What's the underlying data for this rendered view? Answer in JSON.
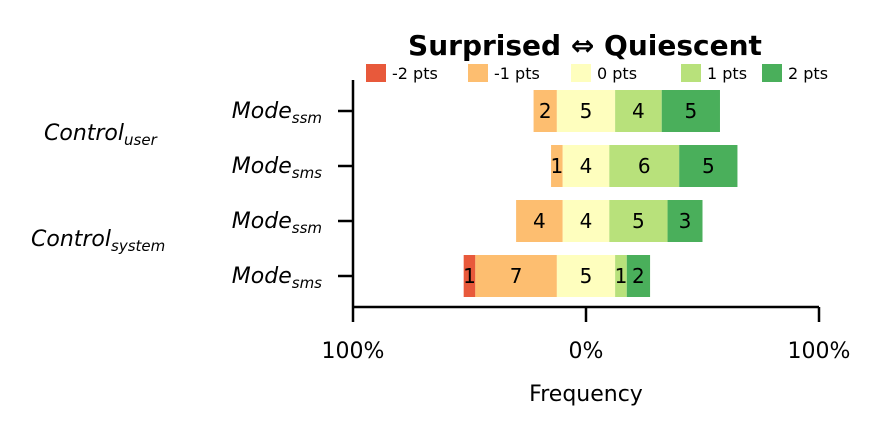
{
  "chart_data": {
    "type": "bar",
    "orientation": "horizontal",
    "stacking": "diverging",
    "title": "Surprised ⇔ Quiescent",
    "xlabel": "Frequency",
    "ylabel": "",
    "x_ticks": [
      "100%",
      "0%",
      "100%"
    ],
    "xlim": [
      -100,
      100
    ],
    "legend_position": "top",
    "grid": false,
    "legend": [
      {
        "name": "-2 pts",
        "color": "#e8593b"
      },
      {
        "name": "-1 pts",
        "color": "#fdbe70"
      },
      {
        "name": "0 pts",
        "color": "#fefebe"
      },
      {
        "name": "1 pts",
        "color": "#b8e17b"
      },
      {
        "name": "2 pts",
        "color": "#4aaf5b"
      }
    ],
    "groups": [
      {
        "label": "Control",
        "subscript": "user"
      },
      {
        "label": "Control",
        "subscript": "system"
      }
    ],
    "rows": [
      {
        "group": 0,
        "label": "Mode",
        "subscript": "ssm",
        "values": [
          0,
          2,
          5,
          4,
          5
        ]
      },
      {
        "group": 0,
        "label": "Mode",
        "subscript": "sms",
        "values": [
          0,
          1,
          4,
          6,
          5
        ]
      },
      {
        "group": 1,
        "label": "Mode",
        "subscript": "ssm",
        "values": [
          0,
          4,
          4,
          5,
          3
        ]
      },
      {
        "group": 1,
        "label": "Mode",
        "subscript": "sms",
        "values": [
          1,
          7,
          5,
          1,
          2
        ]
      }
    ]
  }
}
